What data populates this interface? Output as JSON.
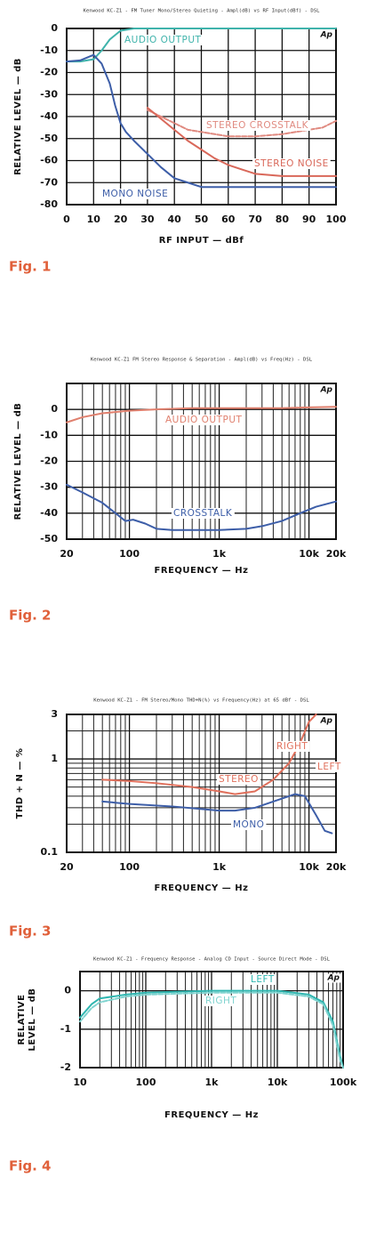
{
  "chart_data": [
    {
      "type": "line",
      "title": "Kenwood KC-Z1 - FM Tuner Mono/Stereo Quieting - Ampl(dB) vs RF Input(dBf) - DSL",
      "logo": "Ap",
      "x_label": "RF INPUT — dBf",
      "y_label": [
        "RELATIVE LEVEL — dB"
      ],
      "caption": "Fig. 1",
      "xlim": [
        0,
        100
      ],
      "xticks": [
        0,
        10,
        20,
        30,
        40,
        50,
        60,
        70,
        80,
        90,
        100
      ],
      "ylim": [
        -80,
        0
      ],
      "yticks": [
        0,
        -10,
        -20,
        -30,
        -40,
        -50,
        -60,
        -70,
        -80
      ],
      "grid": true,
      "series": [
        {
          "name": "AUDIO OUTPUT",
          "color": "#3fb3ab",
          "x": [
            0,
            5,
            10,
            13,
            16,
            20,
            25,
            30,
            40,
            50,
            60,
            70,
            80,
            90,
            100
          ],
          "values": [
            -15,
            -15,
            -14,
            -10,
            -5,
            -1,
            0,
            0,
            0,
            0,
            0,
            0,
            0,
            0,
            0
          ]
        },
        {
          "name": "MONO NOISE",
          "color": "#3d5ea8",
          "x": [
            0,
            5,
            10,
            13,
            16,
            18,
            20,
            22,
            25,
            30,
            35,
            40,
            45,
            50,
            60,
            70,
            80,
            90,
            100
          ],
          "values": [
            -15,
            -14.5,
            -12,
            -16,
            -25,
            -35,
            -43,
            -47,
            -51,
            -57,
            -63,
            -68,
            -70,
            -72,
            -72,
            -72,
            -72,
            -72,
            -72
          ]
        },
        {
          "name": "STEREO CROSSTALK",
          "color": "#e08a80",
          "dash": true,
          "x": [
            30,
            35,
            40,
            45,
            50,
            60,
            70,
            80,
            90,
            95,
            100
          ],
          "values": [
            -37,
            -40,
            -43,
            -46,
            -47,
            -49,
            -49,
            -48,
            -46,
            -45,
            -42
          ]
        },
        {
          "name": "STEREO NOISE",
          "color": "#d9685a",
          "x": [
            30,
            35,
            40,
            45,
            50,
            55,
            60,
            65,
            70,
            80,
            90,
            100
          ],
          "values": [
            -36,
            -41,
            -46,
            -51,
            -55,
            -59,
            -62,
            -64,
            -66,
            -67,
            -67,
            -67
          ]
        }
      ]
    },
    {
      "type": "line",
      "title": "Kenwood KC-Z1 FM Stereo Response & Separation - Ampl(dB) vs Freq(Hz) - DSL",
      "logo": "Ap",
      "x_label": "FREQUENCY — Hz",
      "y_label": [
        "RELATIVE LEVEL — dB"
      ],
      "caption": "Fig. 2",
      "xscale": "log",
      "xlim": [
        20,
        20000
      ],
      "xticks": [
        20,
        100,
        {
          "value": 1000,
          "label": "1k"
        },
        {
          "value": 10000,
          "label": "10k"
        },
        {
          "value": 20000,
          "label": "20k"
        }
      ],
      "ylim": [
        -50,
        10
      ],
      "yticks": [
        0,
        -10,
        -20,
        -30,
        -40,
        -50
      ],
      "grid": true,
      "series": [
        {
          "name": "AUDIO OUTPUT",
          "color": "#e0806e",
          "x": [
            20,
            30,
            50,
            100,
            200,
            500,
            1000,
            5000,
            10000,
            20000
          ],
          "values": [
            -5,
            -3,
            -1.5,
            -0.5,
            0,
            0.5,
            0.5,
            0.5,
            0.8,
            1
          ]
        },
        {
          "name": "CROSSTALK",
          "color": "#3d5ea8",
          "x": [
            20,
            30,
            50,
            70,
            90,
            110,
            150,
            200,
            300,
            500,
            1000,
            2000,
            3000,
            5000,
            8000,
            12000,
            20000
          ],
          "values": [
            -29,
            -32,
            -36,
            -40,
            -43,
            -42.5,
            -44,
            -46,
            -46.5,
            -46.5,
            -46.5,
            -46,
            -45,
            -43,
            -40,
            -37.5,
            -35.5
          ]
        }
      ]
    },
    {
      "type": "line",
      "title": "Kenwood KC-Z1 - FM Stereo/Mono THD+N(%) vs Frequency(Hz) at 65 dBf - DSL",
      "logo": "Ap",
      "x_label": "FREQUENCY — Hz",
      "y_label": [
        "THD + N — %"
      ],
      "caption": "Fig. 3",
      "xscale": "log",
      "yscale": "log",
      "xlim": [
        20,
        20000
      ],
      "xticks": [
        20,
        100,
        {
          "value": 1000,
          "label": "1k"
        },
        {
          "value": 10000,
          "label": "10k"
        },
        {
          "value": 20000,
          "label": "20k"
        }
      ],
      "ylim": [
        0.1,
        3
      ],
      "yticks": [
        3,
        1,
        0.1
      ],
      "grid": true,
      "series": [
        {
          "name": "STEREO",
          "color": "#e0705c",
          "x": [
            50,
            100,
            200,
            500,
            1000,
            1500,
            2500,
            4000,
            6000,
            8000,
            10000,
            12000
          ],
          "values": [
            0.6,
            0.58,
            0.55,
            0.5,
            0.45,
            0.42,
            0.45,
            0.6,
            0.9,
            1.5,
            2.5,
            3
          ]
        },
        {
          "name": "MONO",
          "color": "#3d5ea8",
          "x": [
            50,
            100,
            300,
            1000,
            1500,
            2500,
            4000,
            7000,
            9000,
            12000,
            15000,
            18000
          ],
          "values": [
            0.35,
            0.33,
            0.31,
            0.28,
            0.28,
            0.3,
            0.35,
            0.42,
            0.4,
            0.25,
            0.17,
            0.16
          ]
        }
      ],
      "annotations": [
        "RIGHT",
        "LEFT"
      ]
    },
    {
      "type": "line",
      "title": "Kenwood KC-Z1 - Frequency Response - Analog CD Input - Source Direct Mode - DSL",
      "logo": "Ap",
      "x_label": "FREQUENCY — Hz",
      "y_label": [
        "RELATIVE",
        "LEVEL — dB"
      ],
      "caption": "Fig. 4",
      "xscale": "log",
      "xlim": [
        10,
        100000
      ],
      "xticks": [
        10,
        100,
        {
          "value": 1000,
          "label": "1k"
        },
        {
          "value": 10000,
          "label": "10k"
        },
        {
          "value": 100000,
          "label": "100k"
        }
      ],
      "ylim": [
        -2,
        0.5
      ],
      "yticks": [
        0,
        -1,
        -2
      ],
      "grid": true,
      "series": [
        {
          "name": "LEFT",
          "color": "#2fb6b0",
          "x": [
            10,
            15,
            20,
            50,
            100,
            1000,
            10000,
            30000,
            50000,
            70000,
            90000,
            100000
          ],
          "values": [
            -0.7,
            -0.35,
            -0.2,
            -0.1,
            -0.05,
            0,
            0,
            -0.1,
            -0.3,
            -0.8,
            -1.7,
            -2
          ]
        },
        {
          "name": "RIGHT",
          "color": "#7fd3cf",
          "dash": true,
          "x": [
            10,
            15,
            20,
            50,
            100,
            1000,
            10000,
            30000,
            50000,
            70000,
            90000,
            100000
          ],
          "values": [
            -0.8,
            -0.45,
            -0.3,
            -0.15,
            -0.1,
            -0.05,
            -0.05,
            -0.15,
            -0.35,
            -0.9,
            -1.8,
            -2
          ]
        }
      ]
    }
  ]
}
